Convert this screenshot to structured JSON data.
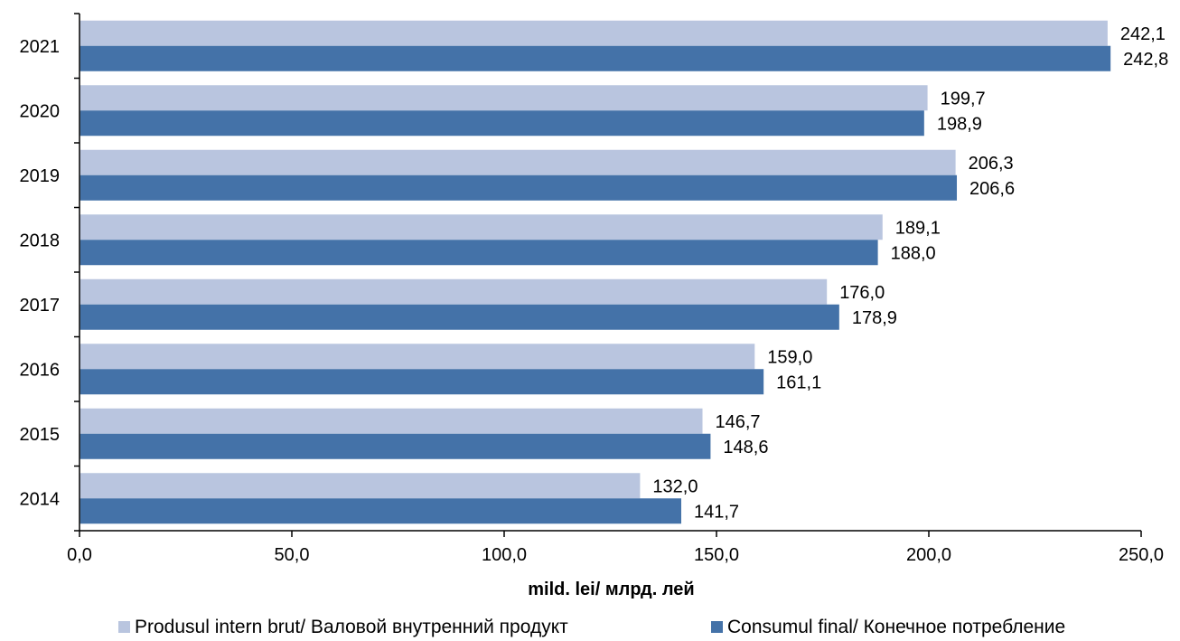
{
  "chart_data": {
    "type": "bar",
    "orientation": "horizontal",
    "categories": [
      "2021",
      "2020",
      "2019",
      "2018",
      "2017",
      "2016",
      "2015",
      "2014"
    ],
    "series": [
      {
        "name": "Produsul intern brut/ Валовой внутренний продукт",
        "color": "#b9c5df",
        "values": [
          242.1,
          199.7,
          206.3,
          189.1,
          176.0,
          159.0,
          146.7,
          132.0
        ],
        "labels": [
          "242,1",
          "199,7",
          "206,3",
          "189,1",
          "176,0",
          "159,0",
          "146,7",
          "132,0"
        ]
      },
      {
        "name": "Consumul final/ Конечное потребление",
        "color": "#4472a8",
        "values": [
          242.8,
          198.9,
          206.6,
          188.0,
          178.9,
          161.1,
          148.6,
          141.7
        ],
        "labels": [
          "242,8",
          "198,9",
          "206,6",
          "188,0",
          "178,9",
          "161,1",
          "148,6",
          "141,7"
        ]
      }
    ],
    "xlabel": "mild. lei/ млрд. лей",
    "xlim": [
      0,
      250
    ],
    "xticks": [
      0,
      50,
      100,
      150,
      200,
      250
    ],
    "xtick_labels": [
      "0,0",
      "50,0",
      "100,0",
      "150,0",
      "200,0",
      "250,0"
    ],
    "grid": false,
    "legend": "bottom"
  }
}
